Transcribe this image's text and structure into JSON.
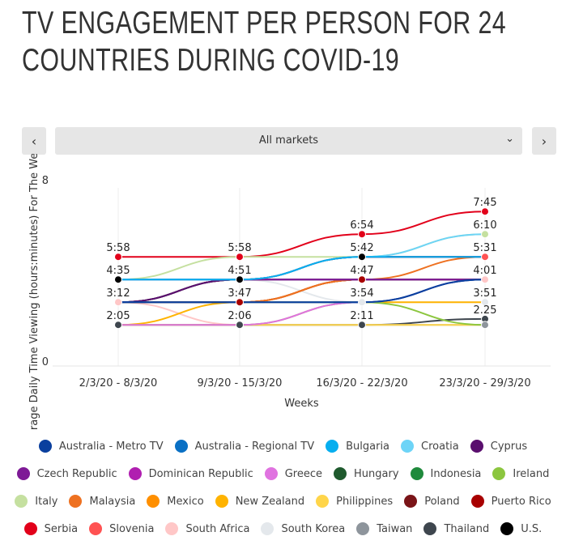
{
  "title": "TV ENGAGEMENT PER PERSON FOR 24 COUNTRIES DURING COVID-19",
  "nav": {
    "prev_icon": "chevron-left-icon",
    "next_icon": "chevron-right-icon",
    "next_label": "›",
    "prev_label": "‹"
  },
  "dropdown": {
    "selected": "All markets",
    "chevron": "⌄"
  },
  "chart_data": {
    "type": "line",
    "title": "",
    "xlabel": "Weeks",
    "ylabel": "Average Daily Time Viewing (hours:minutes) For The Week",
    "ylim": [
      0,
      8
    ],
    "yticks": [
      "0",
      "8"
    ],
    "categories": [
      "2/3/20 - 8/3/20",
      "9/3/20 - 15/3/20",
      "16/3/20 - 22/3/20",
      "23/3/20 - 29/3/20"
    ],
    "grid": "vertical",
    "legend_position": "bottom",
    "series": [
      {
        "name": "Australia - Metro TV",
        "color": "#0a3f9e",
        "values": [
          2.6,
          2.6,
          2.6,
          3.6
        ]
      },
      {
        "name": "Australia - Regional TV",
        "color": "#0a70c4",
        "values": [
          2.6,
          2.6,
          2.6,
          3.6
        ]
      },
      {
        "name": "Bulgaria",
        "color": "#06aeef",
        "values": [
          3.6,
          3.6,
          4.6,
          4.6
        ]
      },
      {
        "name": "Croatia",
        "color": "#6dd4f7",
        "values": [
          3.6,
          3.6,
          4.6,
          5.6
        ]
      },
      {
        "name": "Cyprus",
        "color": "#5a0f6e",
        "values": [
          2.6,
          3.6,
          4.6,
          4.6
        ]
      },
      {
        "name": "Czech Republic",
        "color": "#7e1a96",
        "values": [
          2.6,
          3.6,
          3.6,
          3.6
        ]
      },
      {
        "name": "Dominican Republic",
        "color": "#b01fb0",
        "values": [
          3.6,
          3.6,
          3.6,
          3.6
        ]
      },
      {
        "name": "Greece",
        "color": "#e073e0",
        "values": [
          1.6,
          1.6,
          2.6,
          3.6
        ]
      },
      {
        "name": "Hungary",
        "color": "#1f5a2e",
        "values": [
          2.6,
          3.6,
          3.6,
          3.6
        ]
      },
      {
        "name": "Indonesia",
        "color": "#1f8a3c",
        "values": [
          2.6,
          3.6,
          3.6,
          3.6
        ]
      },
      {
        "name": "Ireland",
        "color": "#8cc63f",
        "values": [
          1.6,
          1.6,
          2.6,
          1.6
        ]
      },
      {
        "name": "Italy",
        "color": "#c5e0a0",
        "values": [
          3.6,
          4.6,
          4.6,
          5.6
        ]
      },
      {
        "name": "Malaysia",
        "color": "#ee7121",
        "values": [
          2.6,
          2.6,
          3.6,
          4.6
        ]
      },
      {
        "name": "Mexico",
        "color": "#ff8f00",
        "values": [
          2.6,
          2.6,
          3.6,
          3.6
        ]
      },
      {
        "name": "New Zealand",
        "color": "#ffb300",
        "values": [
          1.6,
          2.6,
          2.6,
          2.6
        ]
      },
      {
        "name": "Philippines",
        "color": "#ffd54a",
        "values": [
          1.6,
          1.6,
          1.6,
          1.6
        ]
      },
      {
        "name": "Poland",
        "color": "#7a1418",
        "values": [
          2.6,
          2.6,
          3.6,
          3.6
        ]
      },
      {
        "name": "Puerto Rico",
        "color": "#a80000",
        "values": [
          2.6,
          2.6,
          3.6,
          3.6
        ]
      },
      {
        "name": "Serbia",
        "color": "#e2001a",
        "values": [
          4.6,
          4.6,
          5.6,
          6.6
        ]
      },
      {
        "name": "Slovenia",
        "color": "#ff5252",
        "values": [
          2.6,
          3.6,
          4.6,
          4.6
        ]
      },
      {
        "name": "South Africa",
        "color": "#ffc7c7",
        "values": [
          2.6,
          1.6,
          2.6,
          3.6
        ]
      },
      {
        "name": "South Korea",
        "color": "#e4e8ec",
        "values": [
          3.6,
          3.6,
          2.6,
          2.6
        ]
      },
      {
        "name": "Taiwan",
        "color": "#8e959c",
        "values": [
          1.6,
          1.6,
          1.6,
          1.6
        ]
      },
      {
        "name": "Thailand",
        "color": "#3e464e",
        "values": [
          1.6,
          1.6,
          1.6,
          1.86
        ]
      },
      {
        "name": "U.S.",
        "color": "#000000",
        "values": [
          3.6,
          3.6,
          4.6,
          4.6
        ]
      }
    ],
    "point_labels": [
      [
        {
          "text": "5:58",
          "series": "Serbia",
          "y": 4.6
        },
        {
          "text": "4:35",
          "series": "U.S.",
          "y": 3.6
        },
        {
          "text": "3:12",
          "series": "South Africa",
          "y": 2.6
        },
        {
          "text": "2:05",
          "series": "Thailand",
          "y": 1.6
        }
      ],
      [
        {
          "text": "5:58",
          "series": "Serbia",
          "y": 4.6
        },
        {
          "text": "4:51",
          "series": "U.S.",
          "y": 3.6
        },
        {
          "text": "3:47",
          "series": "Puerto Rico",
          "y": 2.6
        },
        {
          "text": "2:06",
          "series": "Thailand",
          "y": 1.6
        }
      ],
      [
        {
          "text": "6:54",
          "series": "Serbia",
          "y": 5.6
        },
        {
          "text": "5:42",
          "series": "U.S.",
          "y": 4.6
        },
        {
          "text": "4:47",
          "series": "Puerto Rico",
          "y": 3.6
        },
        {
          "text": "3:54",
          "series": "South Korea",
          "y": 2.6
        },
        {
          "text": "2:11",
          "series": "Thailand",
          "y": 1.6
        }
      ],
      [
        {
          "text": "7:45",
          "series": "Serbia",
          "y": 6.6
        },
        {
          "text": "6:10",
          "series": "Italy",
          "y": 5.6
        },
        {
          "text": "5:31",
          "series": "Slovenia",
          "y": 4.6
        },
        {
          "text": "4:01",
          "series": "South Africa",
          "y": 3.6
        },
        {
          "text": "3:51",
          "series": "South Korea",
          "y": 2.6
        },
        {
          "text": "2.25",
          "series": "Thailand",
          "y": 1.86
        },
        {
          "text": "",
          "series": "Taiwan",
          "y": 1.6
        }
      ]
    ]
  }
}
